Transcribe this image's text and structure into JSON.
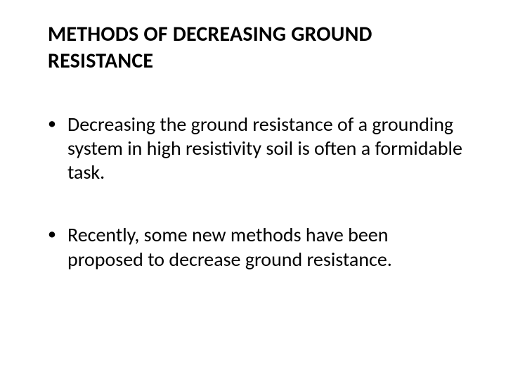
{
  "slide": {
    "title": "METHODS OF DECREASING GROUND RESISTANCE",
    "bullets": [
      "Decreasing the ground resistance of a grounding system in high resistivity soil is often a formidable task.",
      "Recently, some new methods have been proposed to decrease ground resistance."
    ],
    "colors": {
      "background": "#ffffff",
      "text": "#000000"
    },
    "typography": {
      "title_fontsize": 30,
      "title_weight": 700,
      "body_fontsize": 28,
      "body_weight": 400,
      "font_family": "Calibri"
    }
  }
}
